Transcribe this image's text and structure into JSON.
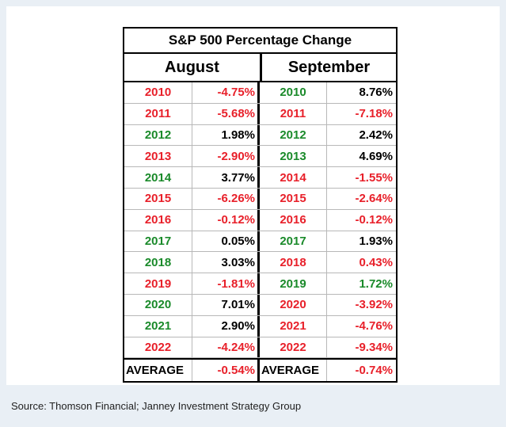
{
  "chart_data": {
    "type": "table",
    "title": "S&P 500 Percentage Change",
    "columns": [
      "August",
      "September"
    ],
    "rows": [
      {
        "year": "2010",
        "aug": "-4.75%",
        "sep": "8.76%",
        "aug_year_color": "red",
        "aug_val_color": "red",
        "sep_year_color": "green",
        "sep_val_color": "black"
      },
      {
        "year": "2011",
        "aug": "-5.68%",
        "sep": "-7.18%",
        "aug_year_color": "red",
        "aug_val_color": "red",
        "sep_year_color": "red",
        "sep_val_color": "red"
      },
      {
        "year": "2012",
        "aug": "1.98%",
        "sep": "2.42%",
        "aug_year_color": "green",
        "aug_val_color": "black",
        "sep_year_color": "green",
        "sep_val_color": "black"
      },
      {
        "year": "2013",
        "aug": "-2.90%",
        "sep": "4.69%",
        "aug_year_color": "red",
        "aug_val_color": "red",
        "sep_year_color": "green",
        "sep_val_color": "black"
      },
      {
        "year": "2014",
        "aug": "3.77%",
        "sep": "-1.55%",
        "aug_year_color": "green",
        "aug_val_color": "black",
        "sep_year_color": "red",
        "sep_val_color": "red"
      },
      {
        "year": "2015",
        "aug": "-6.26%",
        "sep": "-2.64%",
        "aug_year_color": "red",
        "aug_val_color": "red",
        "sep_year_color": "red",
        "sep_val_color": "red"
      },
      {
        "year": "2016",
        "aug": "-0.12%",
        "sep": "-0.12%",
        "aug_year_color": "red",
        "aug_val_color": "red",
        "sep_year_color": "red",
        "sep_val_color": "red"
      },
      {
        "year": "2017",
        "aug": "0.05%",
        "sep": "1.93%",
        "aug_year_color": "green",
        "aug_val_color": "black",
        "sep_year_color": "green",
        "sep_val_color": "black"
      },
      {
        "year": "2018",
        "aug": "3.03%",
        "sep": "0.43%",
        "aug_year_color": "green",
        "aug_val_color": "black",
        "sep_year_color": "red",
        "sep_val_color": "red"
      },
      {
        "year": "2019",
        "aug": "-1.81%",
        "sep": "1.72%",
        "aug_year_color": "red",
        "aug_val_color": "red",
        "sep_year_color": "green",
        "sep_val_color": "green"
      },
      {
        "year": "2020",
        "aug": "7.01%",
        "sep": "-3.92%",
        "aug_year_color": "green",
        "aug_val_color": "black",
        "sep_year_color": "red",
        "sep_val_color": "red"
      },
      {
        "year": "2021",
        "aug": "2.90%",
        "sep": "-4.76%",
        "aug_year_color": "green",
        "aug_val_color": "black",
        "sep_year_color": "red",
        "sep_val_color": "red"
      },
      {
        "year": "2022",
        "aug": "-4.24%",
        "sep": "-9.34%",
        "aug_year_color": "red",
        "aug_val_color": "red",
        "sep_year_color": "red",
        "sep_val_color": "red"
      }
    ],
    "average": {
      "label": "AVERAGE",
      "aug": "-0.54%",
      "sep": "-0.74%"
    }
  },
  "colors": {
    "red": "#e8202a",
    "green": "#1a8a2a",
    "black": "#000000",
    "background": "#e9eff5"
  },
  "footer": {
    "source": "Source: Thomson Financial; Janney Investment Strategy Group"
  }
}
